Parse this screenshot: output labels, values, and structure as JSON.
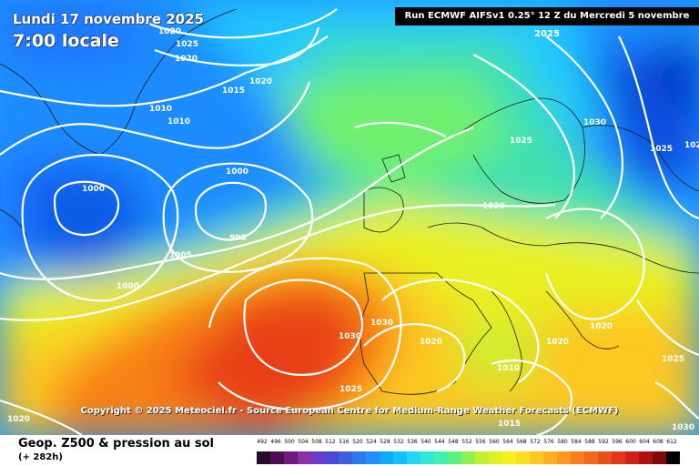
{
  "header": {
    "valid_date": "Lundi 17 novembre 2025",
    "valid_time": "7:00 locale",
    "run_info": "Run ECMWF AIFSv1 0.25° 12 Z du Mercredi 5 novembre 2025"
  },
  "copyright": "Copyright © 2025 Meteociel.fr - Source European Centre for Medium-Range Weather Forecasts (ECMWF)",
  "footer": {
    "title": "Geop. Z500 & pression au sol",
    "forecast_hour": "(+ 282h)"
  },
  "legend": {
    "values": [
      "492",
      "496",
      "500",
      "504",
      "508",
      "512",
      "516",
      "520",
      "524",
      "528",
      "532",
      "536",
      "540",
      "544",
      "548",
      "552",
      "556",
      "560",
      "564",
      "568",
      "572",
      "576",
      "580",
      "584",
      "588",
      "592",
      "596",
      "600",
      "604",
      "608",
      "612"
    ],
    "colors": [
      "#2a0a2a",
      "#4a1050",
      "#701a80",
      "#8a30a8",
      "#6a3cc8",
      "#4a48d8",
      "#3c60e0",
      "#2c78f0",
      "#1e90ff",
      "#10a8ff",
      "#10c0ff",
      "#20d8f0",
      "#30e8d8",
      "#40f0b0",
      "#60f080",
      "#90f050",
      "#c0f030",
      "#e0f020",
      "#f8f018",
      "#fce020",
      "#fcc820",
      "#fcb020",
      "#fc9820",
      "#f88018",
      "#f06818",
      "#e85018",
      "#e03818",
      "#d02018",
      "#b01010",
      "#800808",
      "#000000"
    ]
  },
  "isobars": [
    {
      "label": "1020"
    },
    {
      "label": "1025"
    },
    {
      "label": "1020"
    },
    {
      "label": "1015"
    },
    {
      "label": "1020"
    },
    {
      "label": "1010"
    },
    {
      "label": "1010"
    },
    {
      "label": "1000"
    },
    {
      "label": "1000"
    },
    {
      "label": "995"
    },
    {
      "label": "1005"
    },
    {
      "label": "1000"
    },
    {
      "label": "1030"
    },
    {
      "label": "1030"
    },
    {
      "label": "1025"
    },
    {
      "label": "1020"
    },
    {
      "label": "1010"
    },
    {
      "label": "1015"
    },
    {
      "label": "1020"
    },
    {
      "label": "1025"
    },
    {
      "label": "1020"
    },
    {
      "label": "1025"
    },
    {
      "label": "1030"
    },
    {
      "label": "1025"
    },
    {
      "label": "1020"
    },
    {
      "label": "102"
    },
    {
      "label": "1020"
    },
    {
      "label": "1030"
    }
  ]
}
